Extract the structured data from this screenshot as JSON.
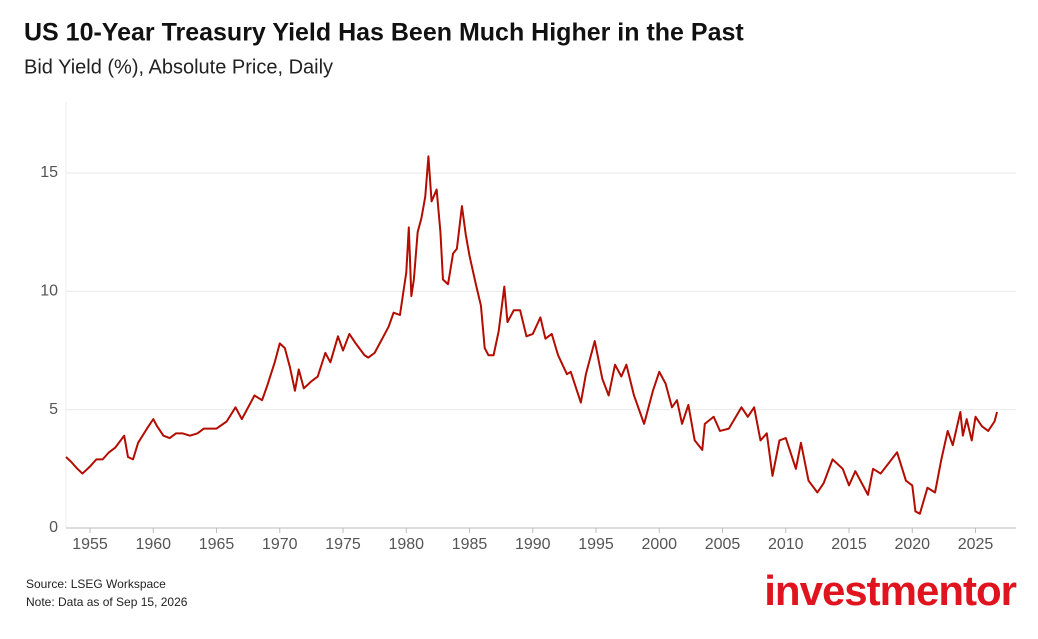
{
  "chart_data": {
    "type": "line",
    "title": "US 10-Year Treasury Yield Has Been Much Higher in the Past",
    "subtitle": "Bid Yield (%), Absolute Price, Daily",
    "source": "Source: LSEG Workspace",
    "note": "Note: Data as of Sep 15, 2026",
    "logo": "investmentor",
    "color": "#b30c00",
    "grid": true,
    "xlim": [
      1953.1,
      2028.2
    ],
    "ylim": [
      0,
      18
    ],
    "xticks": [
      1955,
      1960,
      1965,
      1970,
      1975,
      1980,
      1985,
      1990,
      1995,
      2000,
      2005,
      2010,
      2015,
      2020,
      2025
    ],
    "yticks": [
      0,
      5,
      10,
      15
    ],
    "x": [
      1953.1,
      1953.5,
      1954.0,
      1954.4,
      1955.0,
      1955.5,
      1956.0,
      1956.5,
      1957.0,
      1957.7,
      1958.0,
      1958.4,
      1958.8,
      1959.5,
      1960.0,
      1960.3,
      1960.8,
      1961.3,
      1961.8,
      1962.3,
      1962.9,
      1963.5,
      1964.0,
      1965.0,
      1965.8,
      1966.5,
      1967.0,
      1967.5,
      1968.0,
      1968.6,
      1969.0,
      1969.6,
      1970.0,
      1970.4,
      1970.8,
      1971.2,
      1971.5,
      1971.9,
      1972.5,
      1973.0,
      1973.6,
      1974.0,
      1974.6,
      1975.0,
      1975.5,
      1976.0,
      1976.7,
      1977.0,
      1977.5,
      1978.0,
      1978.6,
      1979.0,
      1979.5,
      1980.0,
      1980.2,
      1980.4,
      1980.6,
      1980.9,
      1981.2,
      1981.5,
      1981.75,
      1982.0,
      1982.4,
      1982.7,
      1982.9,
      1983.3,
      1983.7,
      1984.0,
      1984.4,
      1984.7,
      1985.0,
      1985.5,
      1985.9,
      1986.2,
      1986.5,
      1986.9,
      1987.3,
      1987.75,
      1988.0,
      1988.5,
      1989.0,
      1989.5,
      1990.0,
      1990.6,
      1991.0,
      1991.5,
      1992.0,
      1992.7,
      1993.0,
      1993.8,
      1994.2,
      1994.9,
      1995.5,
      1996.0,
      1996.5,
      1997.0,
      1997.4,
      1998.0,
      1998.8,
      1999.5,
      2000.0,
      2000.5,
      2001.0,
      2001.4,
      2001.8,
      2002.3,
      2002.8,
      2003.4,
      2003.6,
      2004.3,
      2004.8,
      2005.5,
      2006.5,
      2007.0,
      2007.5,
      2008.0,
      2008.5,
      2008.95,
      2009.5,
      2010.0,
      2010.8,
      2011.2,
      2011.8,
      2012.5,
      2013.0,
      2013.7,
      2014.5,
      2015.0,
      2015.5,
      2016.5,
      2016.9,
      2017.5,
      2018.8,
      2019.5,
      2020.0,
      2020.25,
      2020.6,
      2021.2,
      2021.8,
      2022.3,
      2022.8,
      2023.2,
      2023.8,
      2024.0,
      2024.3,
      2024.7,
      2025.0,
      2025.5,
      2026.0,
      2026.5,
      2026.7
    ],
    "values": [
      3.0,
      2.8,
      2.5,
      2.3,
      2.6,
      2.9,
      2.9,
      3.2,
      3.4,
      3.9,
      3.0,
      2.9,
      3.6,
      4.2,
      4.6,
      4.3,
      3.9,
      3.8,
      4.0,
      4.0,
      3.9,
      4.0,
      4.2,
      4.2,
      4.5,
      5.1,
      4.6,
      5.1,
      5.6,
      5.4,
      6.0,
      7.0,
      7.8,
      7.6,
      6.8,
      5.8,
      6.7,
      5.9,
      6.2,
      6.4,
      7.4,
      7.0,
      8.1,
      7.5,
      8.2,
      7.8,
      7.3,
      7.2,
      7.4,
      7.9,
      8.5,
      9.1,
      9.0,
      10.8,
      12.7,
      9.8,
      10.5,
      12.5,
      13.1,
      14.0,
      15.7,
      13.8,
      14.3,
      12.5,
      10.5,
      10.3,
      11.6,
      11.8,
      13.6,
      12.4,
      11.5,
      10.3,
      9.4,
      7.6,
      7.3,
      7.3,
      8.3,
      10.2,
      8.7,
      9.2,
      9.2,
      8.1,
      8.2,
      8.9,
      8.0,
      8.2,
      7.3,
      6.5,
      6.6,
      5.3,
      6.5,
      7.9,
      6.3,
      5.6,
      6.9,
      6.4,
      6.9,
      5.6,
      4.4,
      5.8,
      6.6,
      6.1,
      5.1,
      5.4,
      4.4,
      5.2,
      3.7,
      3.3,
      4.4,
      4.7,
      4.1,
      4.2,
      5.1,
      4.7,
      5.1,
      3.7,
      4.0,
      2.2,
      3.7,
      3.8,
      2.5,
      3.6,
      2.0,
      1.5,
      1.9,
      2.9,
      2.5,
      1.8,
      2.4,
      1.4,
      2.5,
      2.3,
      3.2,
      2.0,
      1.8,
      0.7,
      0.6,
      1.7,
      1.5,
      2.9,
      4.1,
      3.5,
      4.9,
      3.9,
      4.6,
      3.7,
      4.7,
      4.3,
      4.1,
      4.5,
      4.9
    ]
  }
}
